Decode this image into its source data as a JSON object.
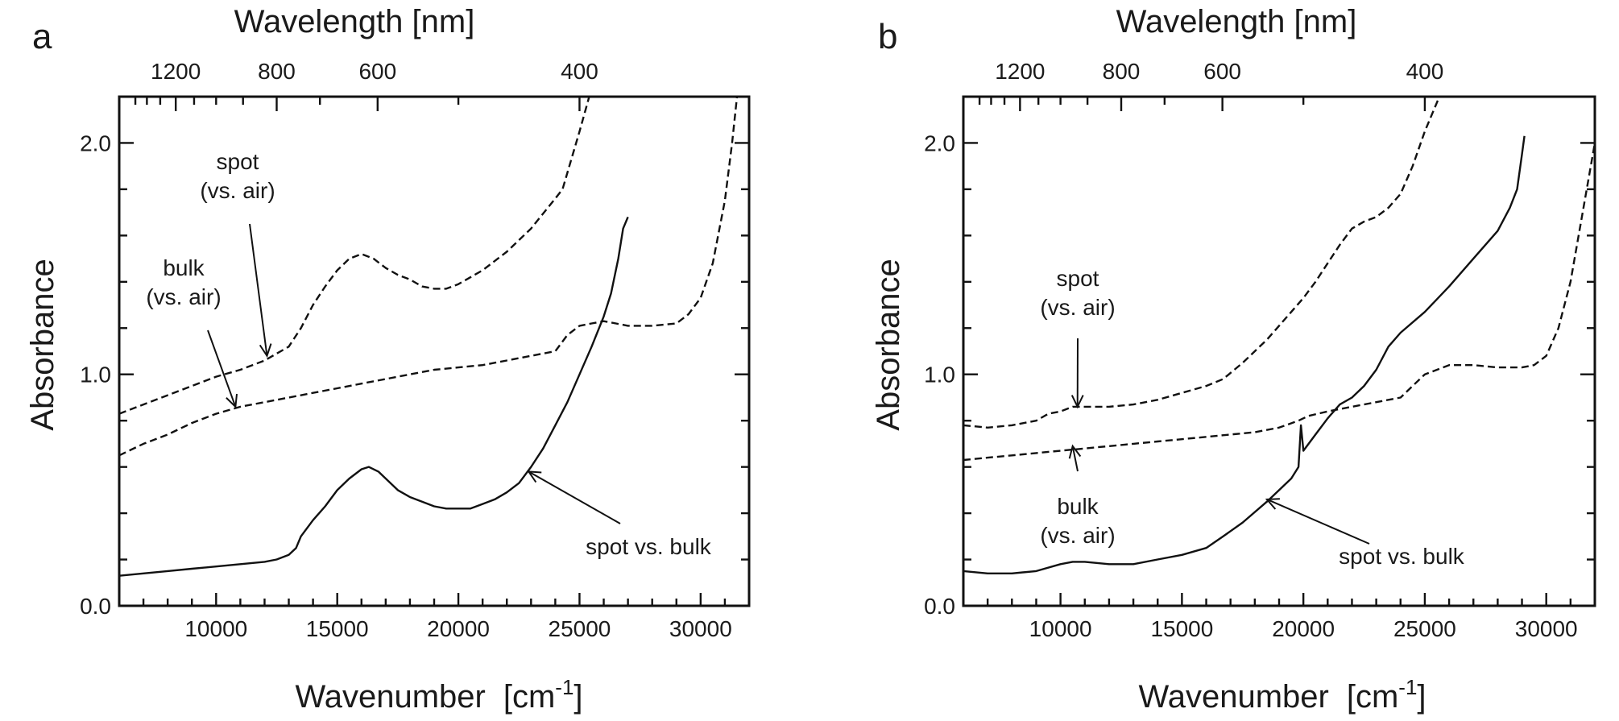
{
  "chart_data": [
    {
      "type": "line",
      "panel_label": "a",
      "xlabel": "Wavenumber",
      "xunit": "[cm",
      "xunit_sup": "-1",
      "xunit_close": "]",
      "x2label": "Wavelength  [nm]",
      "ylabel": "Absorbance",
      "xlim": [
        6000,
        32000
      ],
      "ylim": [
        0,
        2.2
      ],
      "grid": false,
      "xticks": [
        10000,
        15000,
        20000,
        25000,
        30000
      ],
      "xtick_labels": [
        "10000",
        "15000",
        "20000",
        "25000",
        "30000"
      ],
      "yticks": [
        0,
        1,
        2
      ],
      "ytick_labels": [
        "0.0",
        "1.0",
        "2.0"
      ],
      "top_ticks_nm": [
        1200,
        800,
        600,
        400
      ],
      "top_tick_labels": [
        "1200",
        "800",
        "600",
        "400"
      ],
      "series": [
        {
          "style": "dashed",
          "points": [
            [
              6000,
              0.83
            ],
            [
              7000,
              0.87
            ],
            [
              8000,
              0.91
            ],
            [
              9000,
              0.95
            ],
            [
              10000,
              0.99
            ],
            [
              11000,
              1.02
            ],
            [
              12000,
              1.06
            ],
            [
              13000,
              1.12
            ],
            [
              13500,
              1.2
            ],
            [
              14000,
              1.3
            ],
            [
              14500,
              1.38
            ],
            [
              15000,
              1.45
            ],
            [
              15500,
              1.5
            ],
            [
              16000,
              1.52
            ],
            [
              16500,
              1.5
            ],
            [
              17000,
              1.46
            ],
            [
              17500,
              1.43
            ],
            [
              18000,
              1.41
            ],
            [
              18500,
              1.38
            ],
            [
              19000,
              1.37
            ],
            [
              19500,
              1.37
            ],
            [
              20000,
              1.39
            ],
            [
              21000,
              1.45
            ],
            [
              22000,
              1.53
            ],
            [
              23000,
              1.63
            ],
            [
              24000,
              1.76
            ],
            [
              24300,
              1.8
            ],
            [
              25000,
              2.05
            ],
            [
              25400,
              2.2
            ]
          ]
        },
        {
          "style": "dashed",
          "points": [
            [
              6000,
              0.65
            ],
            [
              7000,
              0.7
            ],
            [
              8000,
              0.74
            ],
            [
              9000,
              0.79
            ],
            [
              10000,
              0.83
            ],
            [
              11000,
              0.86
            ],
            [
              12000,
              0.88
            ],
            [
              13000,
              0.9
            ],
            [
              14000,
              0.92
            ],
            [
              15000,
              0.94
            ],
            [
              16000,
              0.96
            ],
            [
              17000,
              0.98
            ],
            [
              18000,
              1.0
            ],
            [
              19000,
              1.02
            ],
            [
              20000,
              1.03
            ],
            [
              21000,
              1.04
            ],
            [
              22000,
              1.06
            ],
            [
              23000,
              1.08
            ],
            [
              24000,
              1.1
            ],
            [
              24500,
              1.17
            ],
            [
              25000,
              1.21
            ],
            [
              25500,
              1.22
            ],
            [
              26000,
              1.23
            ],
            [
              26500,
              1.22
            ],
            [
              27000,
              1.21
            ],
            [
              28000,
              1.21
            ],
            [
              29000,
              1.22
            ],
            [
              29500,
              1.26
            ],
            [
              30000,
              1.33
            ],
            [
              30500,
              1.48
            ],
            [
              31000,
              1.75
            ],
            [
              31300,
              2.0
            ],
            [
              31500,
              2.2
            ]
          ]
        },
        {
          "style": "solid",
          "points": [
            [
              6000,
              0.13
            ],
            [
              7000,
              0.14
            ],
            [
              8000,
              0.15
            ],
            [
              9000,
              0.16
            ],
            [
              10000,
              0.17
            ],
            [
              11000,
              0.18
            ],
            [
              12000,
              0.19
            ],
            [
              12500,
              0.2
            ],
            [
              13000,
              0.22
            ],
            [
              13300,
              0.25
            ],
            [
              13500,
              0.3
            ],
            [
              14000,
              0.37
            ],
            [
              14500,
              0.43
            ],
            [
              15000,
              0.5
            ],
            [
              15500,
              0.55
            ],
            [
              16000,
              0.59
            ],
            [
              16300,
              0.6
            ],
            [
              16700,
              0.58
            ],
            [
              17000,
              0.55
            ],
            [
              17500,
              0.5
            ],
            [
              18000,
              0.47
            ],
            [
              18500,
              0.45
            ],
            [
              19000,
              0.43
            ],
            [
              19500,
              0.42
            ],
            [
              20000,
              0.42
            ],
            [
              20500,
              0.42
            ],
            [
              21000,
              0.44
            ],
            [
              21500,
              0.46
            ],
            [
              22000,
              0.49
            ],
            [
              22500,
              0.53
            ],
            [
              23000,
              0.6
            ],
            [
              23500,
              0.68
            ],
            [
              24000,
              0.78
            ],
            [
              24500,
              0.88
            ],
            [
              25000,
              1.0
            ],
            [
              25500,
              1.12
            ],
            [
              26000,
              1.25
            ],
            [
              26300,
              1.35
            ],
            [
              26600,
              1.5
            ],
            [
              26800,
              1.63
            ],
            [
              27000,
              1.68
            ]
          ]
        }
      ],
      "annotations": [
        {
          "lines": [
            "spot",
            "(vs. air)"
          ],
          "target": [
            12100,
            1.08
          ]
        },
        {
          "lines": [
            "bulk",
            "(vs. air)"
          ],
          "target": [
            10800,
            0.86
          ]
        },
        {
          "lines": [
            "spot vs. bulk"
          ],
          "target": [
            22900,
            0.58
          ]
        }
      ]
    },
    {
      "type": "line",
      "panel_label": "b",
      "xlabel": "Wavenumber",
      "xunit": "[cm",
      "xunit_sup": "-1",
      "xunit_close": "]",
      "x2label": "Wavelength  [nm]",
      "ylabel": "Absorbance",
      "xlim": [
        6000,
        32000
      ],
      "ylim": [
        0,
        2.2
      ],
      "grid": false,
      "xticks": [
        10000,
        15000,
        20000,
        25000,
        30000
      ],
      "xtick_labels": [
        "10000",
        "15000",
        "20000",
        "25000",
        "30000"
      ],
      "yticks": [
        0,
        1,
        2
      ],
      "ytick_labels": [
        "0.0",
        "1.0",
        "2.0"
      ],
      "top_ticks_nm": [
        1200,
        800,
        600,
        400
      ],
      "top_tick_labels": [
        "1200",
        "800",
        "600",
        "400"
      ],
      "series": [
        {
          "style": "dashed",
          "points": [
            [
              6000,
              0.78
            ],
            [
              7000,
              0.77
            ],
            [
              8000,
              0.78
            ],
            [
              9000,
              0.8
            ],
            [
              9500,
              0.83
            ],
            [
              10000,
              0.84
            ],
            [
              10500,
              0.86
            ],
            [
              11000,
              0.86
            ],
            [
              12000,
              0.86
            ],
            [
              13000,
              0.87
            ],
            [
              14000,
              0.89
            ],
            [
              15000,
              0.92
            ],
            [
              16000,
              0.95
            ],
            [
              16700,
              0.98
            ],
            [
              17500,
              1.05
            ],
            [
              18500,
              1.15
            ],
            [
              19500,
              1.27
            ],
            [
              20000,
              1.33
            ],
            [
              20500,
              1.4
            ],
            [
              21000,
              1.48
            ],
            [
              21500,
              1.56
            ],
            [
              22000,
              1.63
            ],
            [
              22500,
              1.66
            ],
            [
              23000,
              1.68
            ],
            [
              23500,
              1.72
            ],
            [
              24000,
              1.78
            ],
            [
              24500,
              1.9
            ],
            [
              25000,
              2.05
            ],
            [
              25600,
              2.2
            ]
          ]
        },
        {
          "style": "dashed",
          "points": [
            [
              6000,
              0.63
            ],
            [
              7000,
              0.64
            ],
            [
              8000,
              0.65
            ],
            [
              9000,
              0.66
            ],
            [
              10000,
              0.67
            ],
            [
              11000,
              0.68
            ],
            [
              12000,
              0.69
            ],
            [
              13000,
              0.7
            ],
            [
              14000,
              0.71
            ],
            [
              15000,
              0.72
            ],
            [
              16000,
              0.73
            ],
            [
              17000,
              0.74
            ],
            [
              18000,
              0.75
            ],
            [
              19000,
              0.77
            ],
            [
              19800,
              0.8
            ],
            [
              20200,
              0.82
            ],
            [
              21000,
              0.84
            ],
            [
              22000,
              0.86
            ],
            [
              23000,
              0.88
            ],
            [
              24000,
              0.9
            ],
            [
              24500,
              0.95
            ],
            [
              25000,
              1.0
            ],
            [
              25500,
              1.02
            ],
            [
              26000,
              1.04
            ],
            [
              27000,
              1.04
            ],
            [
              28000,
              1.03
            ],
            [
              29000,
              1.03
            ],
            [
              29500,
              1.04
            ],
            [
              30000,
              1.08
            ],
            [
              30500,
              1.2
            ],
            [
              31000,
              1.4
            ],
            [
              31500,
              1.7
            ],
            [
              32000,
              2.0
            ]
          ]
        },
        {
          "style": "solid",
          "points": [
            [
              6000,
              0.15
            ],
            [
              7000,
              0.14
            ],
            [
              8000,
              0.14
            ],
            [
              9000,
              0.15
            ],
            [
              10000,
              0.18
            ],
            [
              10500,
              0.19
            ],
            [
              11000,
              0.19
            ],
            [
              12000,
              0.18
            ],
            [
              13000,
              0.18
            ],
            [
              14000,
              0.2
            ],
            [
              15000,
              0.22
            ],
            [
              16000,
              0.25
            ],
            [
              16700,
              0.3
            ],
            [
              17500,
              0.36
            ],
            [
              18500,
              0.45
            ],
            [
              19500,
              0.55
            ],
            [
              19800,
              0.6
            ],
            [
              19900,
              0.78
            ],
            [
              20000,
              0.67
            ],
            [
              20500,
              0.74
            ],
            [
              21000,
              0.81
            ],
            [
              21500,
              0.87
            ],
            [
              22000,
              0.9
            ],
            [
              22500,
              0.95
            ],
            [
              23000,
              1.02
            ],
            [
              23500,
              1.12
            ],
            [
              24000,
              1.18
            ],
            [
              25000,
              1.27
            ],
            [
              26000,
              1.38
            ],
            [
              27000,
              1.5
            ],
            [
              28000,
              1.62
            ],
            [
              28500,
              1.72
            ],
            [
              28800,
              1.8
            ],
            [
              29000,
              1.95
            ],
            [
              29100,
              2.03
            ]
          ]
        }
      ],
      "annotations": [
        {
          "lines": [
            "spot",
            "(vs. air)"
          ],
          "target": [
            10700,
            0.86
          ]
        },
        {
          "lines": [
            "bulk",
            "(vs. air)"
          ],
          "target": [
            10500,
            0.69
          ]
        },
        {
          "lines": [
            "spot vs. bulk"
          ],
          "target": [
            18500,
            0.46
          ]
        }
      ]
    }
  ]
}
